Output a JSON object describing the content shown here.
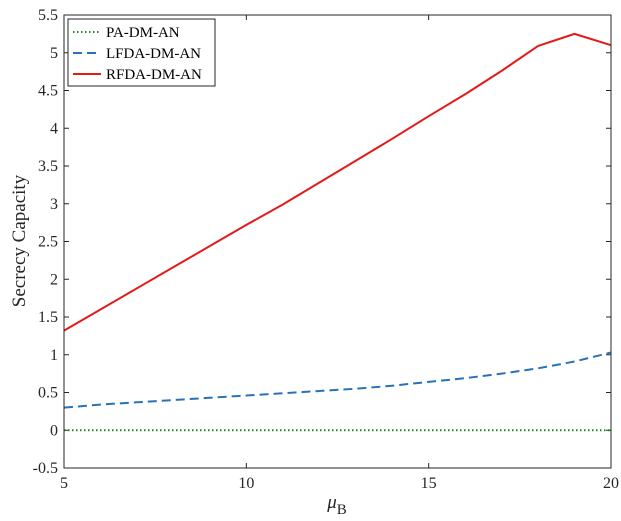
{
  "chart_data": {
    "type": "line",
    "xlabel_main": "μ",
    "xlabel_sub": "B",
    "ylabel": "Secrecy Capacity",
    "xlim": [
      5,
      20
    ],
    "ylim": [
      -0.5,
      5.5
    ],
    "xticks": [
      "5",
      "10",
      "15",
      "20"
    ],
    "yticks": [
      "-0.5",
      "0",
      "0.5",
      "1",
      "1.5",
      "2",
      "2.5",
      "3",
      "3.5",
      "4",
      "4.5",
      "5",
      "5.5"
    ],
    "grid": false,
    "legend_position": "top-left",
    "x": [
      5,
      6,
      7,
      8,
      9,
      10,
      11,
      12,
      13,
      14,
      15,
      16,
      17,
      18,
      19,
      20
    ],
    "series": [
      {
        "name": "PA-DM-AN",
        "color": "#1a8a1a",
        "style": "dotted",
        "values": [
          0,
          0,
          0,
          0,
          0,
          0,
          0,
          0,
          0,
          0,
          0,
          0,
          0,
          0,
          0,
          0
        ]
      },
      {
        "name": "LFDA-DM-AN",
        "color": "#2a72b8",
        "style": "dashed",
        "values": [
          0.3,
          0.34,
          0.37,
          0.4,
          0.43,
          0.46,
          0.49,
          0.52,
          0.55,
          0.59,
          0.64,
          0.69,
          0.75,
          0.82,
          0.91,
          1.03
        ]
      },
      {
        "name": "RFDA-DM-AN",
        "color": "#e41a1a",
        "style": "solid",
        "values": [
          1.32,
          1.6,
          1.88,
          2.16,
          2.44,
          2.72,
          2.99,
          3.28,
          3.57,
          3.86,
          4.16,
          4.45,
          4.76,
          5.09,
          5.25,
          5.1
        ]
      }
    ]
  }
}
